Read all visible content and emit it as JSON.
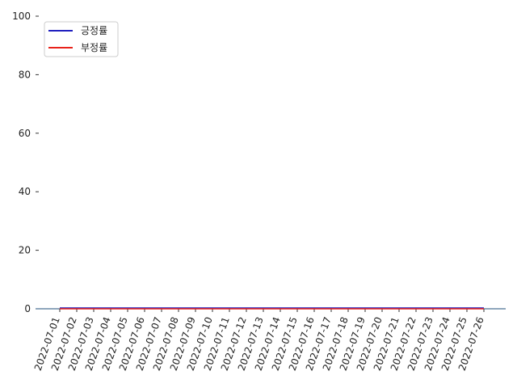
{
  "chart_data": {
    "type": "line",
    "x": [
      "2022-07-01",
      "2022-07-02",
      "2022-07-03",
      "2022-07-04",
      "2022-07-05",
      "2022-07-06",
      "2022-07-07",
      "2022-07-08",
      "2022-07-09",
      "2022-07-10",
      "2022-07-11",
      "2022-07-12",
      "2022-07-13",
      "2022-07-14",
      "2022-07-15",
      "2022-07-16",
      "2022-07-17",
      "2022-07-18",
      "2022-07-19",
      "2022-07-20",
      "2022-07-21",
      "2022-07-22",
      "2022-07-23",
      "2022-07-24",
      "2022-07-25",
      "2022-07-26"
    ],
    "series": [
      {
        "name": "긍정률",
        "color": "#1f1fbf",
        "values": [
          0,
          0,
          0,
          0,
          0,
          0,
          0,
          0,
          0,
          0,
          0,
          0,
          0,
          0,
          0,
          0,
          0,
          0,
          0,
          0,
          0,
          0,
          0,
          0,
          0,
          0
        ]
      },
      {
        "name": "부정률",
        "color": "#e8221a",
        "values": [
          0,
          0,
          0,
          0,
          0,
          0,
          0,
          0,
          0,
          0,
          0,
          0,
          0,
          0,
          0,
          0,
          0,
          0,
          0,
          0,
          0,
          0,
          0,
          0,
          0,
          0
        ]
      }
    ],
    "yticks": [
      0,
      20,
      40,
      60,
      80,
      100
    ],
    "ylim": [
      0,
      100
    ],
    "grid": false,
    "legend": "top-left",
    "axis_color": "#1f4e79"
  }
}
